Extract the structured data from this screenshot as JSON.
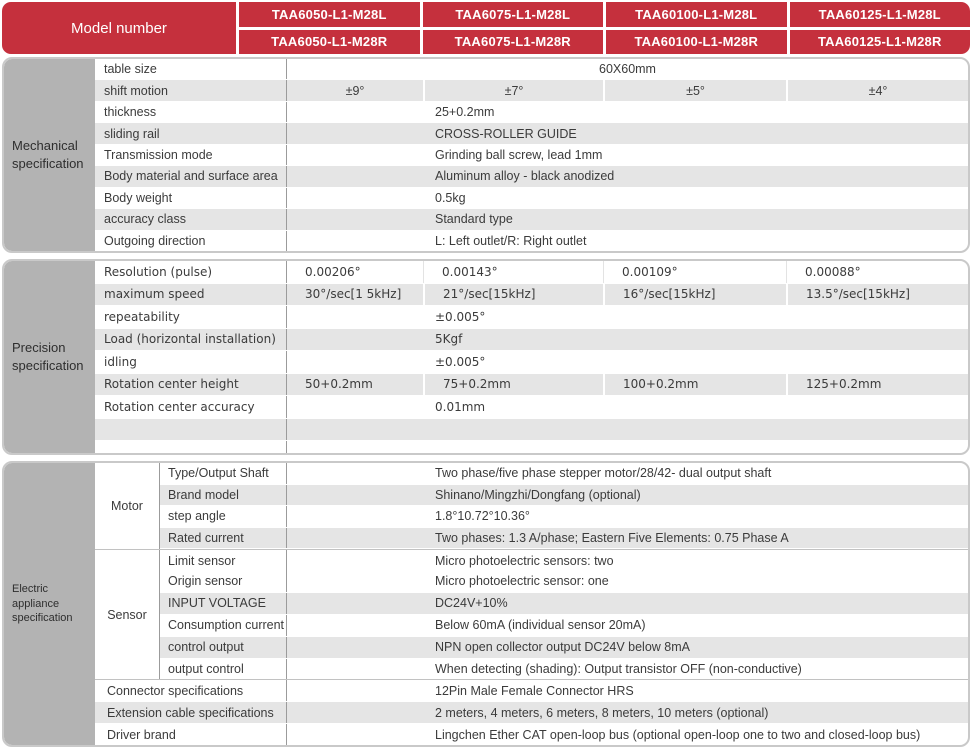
{
  "colors": {
    "header_red": "#c5303d",
    "sidebar_gray": "#b3b3b3",
    "stripe_gray": "#e5e5e5",
    "box_border_gray": "#c9c9c9",
    "divider_gray": "#9b9b9b",
    "text_dark": "#3b3b3b"
  },
  "header": {
    "model_label": "Model number",
    "models": [
      {
        "top": "TAA6050-L1-M28L",
        "bottom": "TAA6050-L1-M28R"
      },
      {
        "top": "TAA6075-L1-M28L",
        "bottom": "TAA6075-L1-M28R"
      },
      {
        "top": "TAA60100-L1-M28L",
        "bottom": "TAA60100-L1-M28R"
      },
      {
        "top": "TAA60125-L1-M28L",
        "bottom": "TAA60125-L1-M28R"
      }
    ]
  },
  "mechanical": {
    "title": "Mechanical specification",
    "rows": {
      "table_size": {
        "label": "table size",
        "value": "60X60mm"
      },
      "shift_motion": {
        "label": "shift motion",
        "values": [
          "±9°",
          "±7°",
          "±5°",
          "±4°"
        ]
      },
      "thickness": {
        "label": "thickness",
        "value": "25+0.2mm"
      },
      "sliding_rail": {
        "label": "sliding rail",
        "value": "CROSS-ROLLER GUIDE"
      },
      "transmission": {
        "label": "Transmission mode",
        "value": "Grinding ball screw, lead 1mm"
      },
      "body_material": {
        "label": "Body material and surface area",
        "value": "Aluminum alloy - black anodized"
      },
      "body_weight": {
        "label": "Body weight",
        "value": "0.5kg"
      },
      "accuracy_class": {
        "label": "accuracy class",
        "value": "Standard type"
      },
      "outgoing": {
        "label": "Outgoing direction",
        "value": "L:  Left outlet/R: Right outlet"
      }
    }
  },
  "precision": {
    "title": "Precision specification",
    "rows": {
      "resolution": {
        "label": "Resolution (pulse)",
        "values": [
          "0.00206°",
          "0.00143°",
          "0.00109°",
          "0.00088°"
        ]
      },
      "max_speed": {
        "label": "maximum speed",
        "values": [
          "30°/sec[1 5kHz]",
          "21°/sec[15kHz]",
          "16°/sec[15kHz]",
          "13.5°/sec[15kHz]"
        ]
      },
      "repeatability": {
        "label": "repeatability",
        "value": "±0.005°"
      },
      "load": {
        "label": "Load (horizontal installation)",
        "value": "5Kgf"
      },
      "idling": {
        "label": "idling",
        "value": "±0.005°"
      },
      "center_height": {
        "label": "Rotation center height",
        "values": [
          "50+0.2mm",
          "75+0.2mm",
          "100+0.2mm",
          "125+0.2mm"
        ]
      },
      "center_accuracy": {
        "label": "Rotation center accuracy",
        "value": "0.01mm"
      }
    }
  },
  "electric": {
    "title": "Electric appliance specification",
    "groups": {
      "motor": "Motor",
      "sensor": "Sensor"
    },
    "rows": {
      "type_shaft": {
        "label": "Type/Output Shaft",
        "value": "Two phase/five phase stepper motor/28/42- dual output shaft"
      },
      "brand_model": {
        "label": "Brand model",
        "value": "Shinano/Mingzhi/Dongfang (optional)"
      },
      "step_angle": {
        "label": "step angle",
        "value": "1.8°10.72°10.36°"
      },
      "rated_current": {
        "label": "Rated current",
        "value": "Two phases: 1.3 A/phase; Eastern Five Elements: 0.75 Phase A"
      },
      "limit_sensor": {
        "label": "Limit sensor",
        "value": "Micro photoelectric sensors: two"
      },
      "origin_sensor": {
        "label": "Origin sensor",
        "value": "Micro photoelectric sensor: one"
      },
      "input_voltage": {
        "label": "INPUT VOLTAGE",
        "value": "DC24V+10%"
      },
      "consumption": {
        "label": "Consumption current",
        "value": "Below 60mA (individual sensor 20mA)"
      },
      "control_output": {
        "label": "control output",
        "value": "NPN open collector output DC24V below 8mA"
      },
      "output_control": {
        "label": "output control",
        "value": "When detecting (shading): Output transistor OFF (non-conductive)"
      },
      "connector": {
        "label": "Connector specifications",
        "value": "12Pin Male Female Connector HRS"
      },
      "extension_cable": {
        "label": "Extension cable specifications",
        "value": "2 meters, 4 meters, 6 meters, 8 meters, 10 meters (optional)"
      },
      "driver_brand": {
        "label": "Driver brand",
        "value": "Lingchen Ether CAT open-loop bus (optional open-loop one to two and closed-loop bus)"
      }
    }
  }
}
